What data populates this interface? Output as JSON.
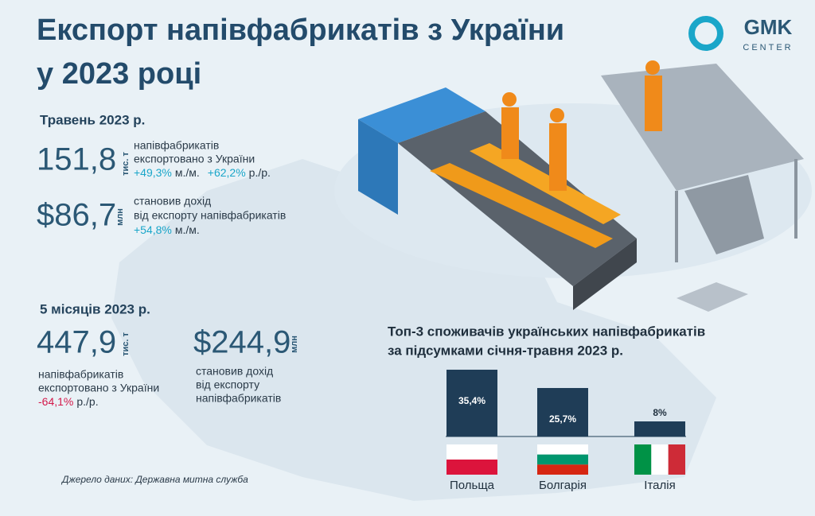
{
  "header": {
    "title_lines": [
      "Експорт напівфабрикатів з України",
      "у 2023 році"
    ],
    "logo": [
      "GMK",
      "CENTER"
    ]
  },
  "may": {
    "heading": "Травень 2023 р.",
    "volume": {
      "value": "151,8",
      "unit": "тис. т",
      "lines": [
        "напівфабрикатів",
        "експортовано з України"
      ],
      "changes": [
        "+49,3%",
        "м./м.",
        "+62,2%",
        "р./р."
      ]
    },
    "revenue": {
      "value": "$86,7",
      "unit": "млн",
      "lines": [
        "становив дохід",
        "від експорту напівфабрикатів"
      ],
      "changes": [
        "+54,8%",
        "м./м."
      ]
    }
  },
  "five_months": {
    "heading": "5 місяців 2023 р.",
    "volume": {
      "value": "447,9",
      "unit": "тис. т",
      "lines": [
        "напівфабрикатів",
        "експортовано з України"
      ],
      "changes": [
        "-64,1%",
        "р./р."
      ]
    },
    "revenue": {
      "value": "$244,9",
      "unit": "млн",
      "lines": [
        "становив дохід",
        "від експорту",
        "напівфабрикатів"
      ]
    }
  },
  "source": "Джерело даних: Державна митна служба",
  "chart_data": {
    "type": "bar",
    "title_lines": [
      "Топ-3 споживачів українських  напівфабрикатів",
      "за підсумками січня-травня 2023 р."
    ],
    "categories": [
      "Польща",
      "Болгарія",
      "Італія"
    ],
    "values": [
      35.4,
      25.7,
      8
    ],
    "value_labels": [
      "35,4%",
      "25,7%",
      "8%"
    ],
    "color": "#1f3d57"
  }
}
